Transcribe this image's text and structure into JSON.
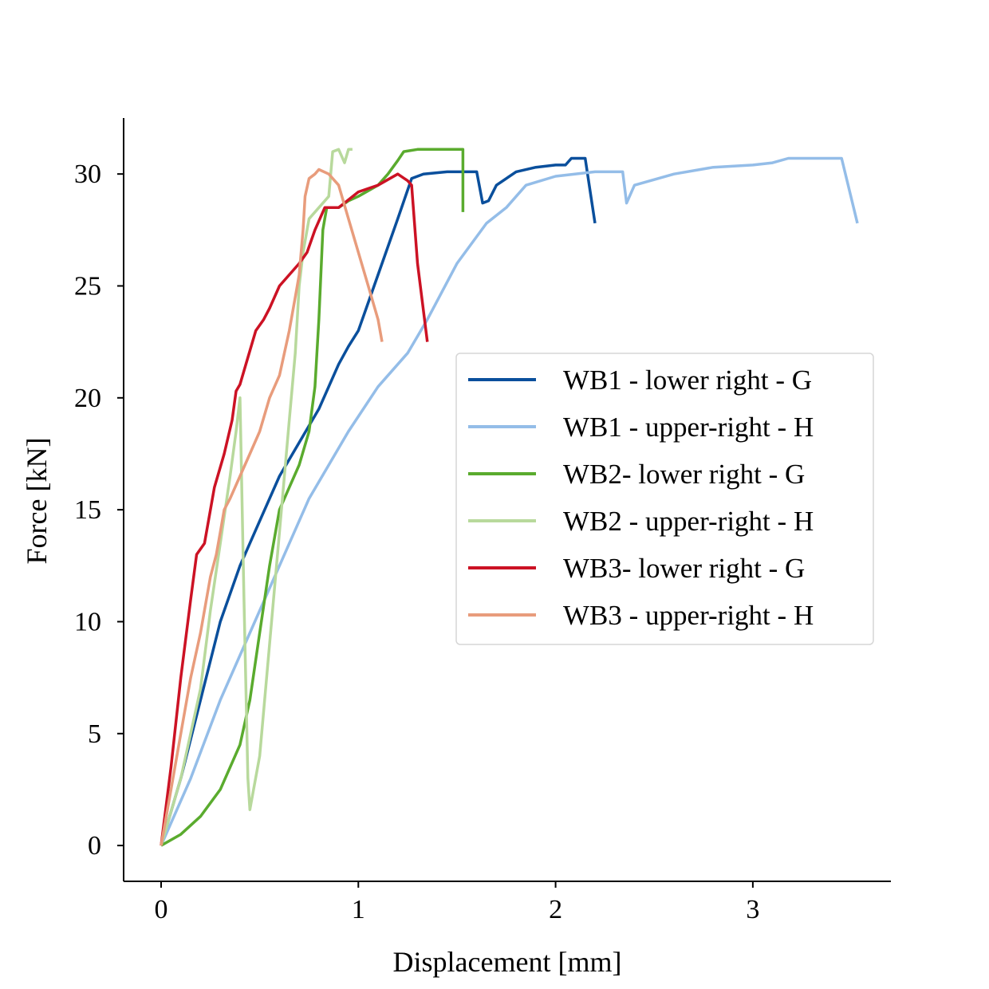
{
  "chart_data": {
    "type": "line",
    "title": "",
    "xlabel": "Displacement [mm]",
    "ylabel": "Force [kN]",
    "xlim": [
      -0.19,
      3.7
    ],
    "ylim": [
      -1.6,
      32.5
    ],
    "xticks": [
      0,
      1,
      2,
      3
    ],
    "yticks": [
      0,
      5,
      10,
      15,
      20,
      25,
      30
    ],
    "grid": false,
    "legend_position": "center-right",
    "series": [
      {
        "name": "WB1 - lower right - G",
        "color": "#0a4f9c",
        "x": [
          0,
          0.1,
          0.2,
          0.3,
          0.4,
          0.5,
          0.6,
          0.7,
          0.8,
          0.9,
          0.95,
          1.0,
          1.1,
          1.2,
          1.27,
          1.33,
          1.45,
          1.6,
          1.63,
          1.66,
          1.7,
          1.8,
          1.9,
          2.0,
          2.05,
          2.08,
          2.15,
          2.2
        ],
        "y": [
          0,
          3,
          6.5,
          10,
          12.5,
          14.5,
          16.5,
          18,
          19.5,
          21.5,
          22.3,
          23,
          25.5,
          28,
          29.8,
          30,
          30.1,
          30.1,
          28.7,
          28.8,
          29.5,
          30.1,
          30.3,
          30.4,
          30.4,
          30.7,
          30.7,
          27.8
        ]
      },
      {
        "name": "WB1 - upper-right - H",
        "color": "#94bde8",
        "x": [
          0,
          0.15,
          0.3,
          0.45,
          0.6,
          0.75,
          0.85,
          0.95,
          1.1,
          1.25,
          1.35,
          1.5,
          1.65,
          1.75,
          1.85,
          2.0,
          2.2,
          2.34,
          2.36,
          2.4,
          2.6,
          2.8,
          3.0,
          3.1,
          3.18,
          3.3,
          3.45,
          3.53
        ],
        "y": [
          0,
          3,
          6.5,
          9.5,
          12.5,
          15.5,
          17,
          18.5,
          20.5,
          22,
          23.5,
          26,
          27.8,
          28.5,
          29.5,
          29.9,
          30.1,
          30.1,
          28.7,
          29.5,
          30,
          30.3,
          30.4,
          30.5,
          30.7,
          30.7,
          30.7,
          27.8
        ]
      },
      {
        "name": "WB2- lower right - G",
        "color": "#5aab2e",
        "x": [
          0,
          0.1,
          0.2,
          0.3,
          0.4,
          0.45,
          0.5,
          0.55,
          0.6,
          0.65,
          0.7,
          0.75,
          0.78,
          0.8,
          0.81,
          0.82,
          0.83,
          0.84,
          0.86,
          0.9,
          0.95,
          1.0,
          1.1,
          1.15,
          1.2,
          1.23,
          1.3,
          1.4,
          1.5,
          1.52,
          1.53,
          1.53
        ],
        "y": [
          0,
          0.5,
          1.3,
          2.5,
          4.5,
          6.5,
          9.5,
          12.5,
          15,
          16,
          17,
          18.5,
          20.5,
          23.5,
          25.5,
          27.5,
          28,
          28.5,
          28.5,
          28.5,
          28.8,
          29,
          29.5,
          30,
          30.6,
          31,
          31.1,
          31.1,
          31.1,
          31.1,
          31.1,
          28.3
        ]
      },
      {
        "name": "WB2 - upper-right - H",
        "color": "#b8d99c",
        "x": [
          0,
          0.1,
          0.2,
          0.25,
          0.3,
          0.35,
          0.38,
          0.4,
          0.42,
          0.44,
          0.45,
          0.5,
          0.55,
          0.6,
          0.65,
          0.68,
          0.7,
          0.72,
          0.75,
          0.8,
          0.85,
          0.87,
          0.9,
          0.93,
          0.95,
          0.97
        ],
        "y": [
          0,
          3,
          7,
          10.5,
          13.5,
          16.5,
          18.5,
          20,
          11,
          3,
          1.6,
          4,
          9,
          14,
          19,
          22,
          25,
          26.5,
          28,
          28.5,
          29,
          31,
          31.1,
          30.5,
          31.1,
          31.1
        ]
      },
      {
        "name": "WB3- lower right - G",
        "color": "#cc1224",
        "x": [
          0,
          0.05,
          0.1,
          0.15,
          0.18,
          0.22,
          0.27,
          0.32,
          0.36,
          0.38,
          0.4,
          0.43,
          0.48,
          0.52,
          0.55,
          0.6,
          0.65,
          0.7,
          0.74,
          0.78,
          0.83,
          0.9,
          1.0,
          1.1,
          1.2,
          1.25,
          1.27,
          1.3,
          1.35
        ],
        "y": [
          0,
          3.5,
          7.5,
          11,
          13,
          13.5,
          16,
          17.5,
          19,
          20.3,
          20.6,
          21.5,
          23,
          23.5,
          24,
          25,
          25.5,
          26,
          26.5,
          27.5,
          28.5,
          28.5,
          29.2,
          29.5,
          30,
          29.7,
          29.5,
          26,
          22.5
        ]
      },
      {
        "name": "WB3 - upper-right - H",
        "color": "#e89c7c",
        "x": [
          0,
          0.05,
          0.1,
          0.15,
          0.2,
          0.25,
          0.28,
          0.3,
          0.32,
          0.35,
          0.4,
          0.45,
          0.5,
          0.55,
          0.6,
          0.65,
          0.68,
          0.7,
          0.72,
          0.73,
          0.75,
          0.78,
          0.8,
          0.85,
          0.9,
          0.95,
          1.0,
          1.05,
          1.1,
          1.12
        ],
        "y": [
          0,
          2.5,
          5,
          7.5,
          9.5,
          12,
          13,
          14,
          15,
          15.5,
          16.5,
          17.5,
          18.5,
          20,
          21,
          23,
          24.5,
          25.5,
          27.5,
          29,
          29.8,
          30,
          30.2,
          30,
          29.5,
          28,
          26.5,
          25,
          23.5,
          22.5
        ]
      }
    ]
  }
}
